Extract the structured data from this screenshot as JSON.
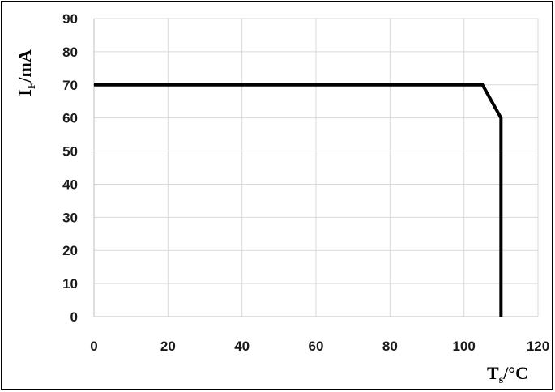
{
  "chart_data": {
    "type": "line",
    "title": "",
    "xlabel": {
      "main": "T",
      "subscript": "s",
      "suffix": "/°C"
    },
    "ylabel": {
      "main": "I",
      "subscript": "F",
      "suffix": "/mA"
    },
    "xlim": [
      0,
      120
    ],
    "ylim": [
      0,
      90
    ],
    "xticks": [
      0,
      20,
      40,
      60,
      80,
      100,
      120
    ],
    "yticks": [
      0,
      10,
      20,
      30,
      40,
      50,
      60,
      70,
      80,
      90
    ],
    "grid": true,
    "legend": "none",
    "series": [
      {
        "x": [
          0,
          105,
          110,
          110
        ],
        "y": [
          70,
          70,
          60,
          0
        ]
      }
    ],
    "colors": {
      "line": "#000000",
      "grid": "#d9d9d9",
      "axis": "#bfbfbf"
    }
  }
}
